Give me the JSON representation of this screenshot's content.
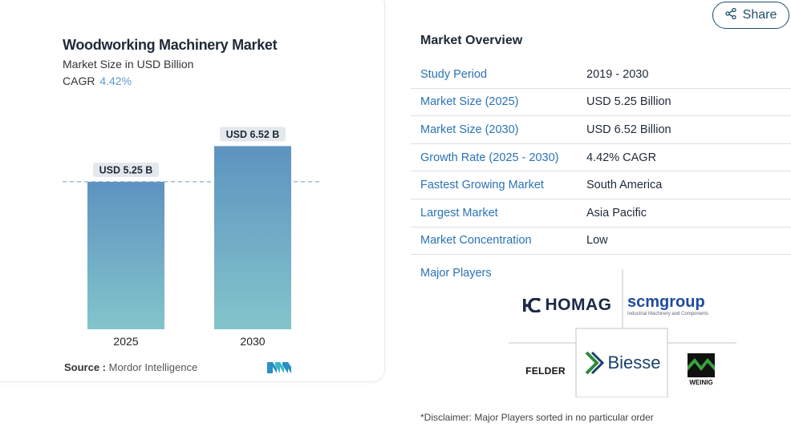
{
  "share": {
    "label": "Share",
    "icon": "share-icon"
  },
  "chart": {
    "title": "Woodworking Machinery Market",
    "subtitle": "Market Size in USD Billion",
    "cagr_label": "CAGR",
    "cagr_value": "4.42%",
    "source_label": "Source :",
    "source_value": "Mordor Intelligence"
  },
  "chart_data": {
    "type": "bar",
    "categories": [
      "2025",
      "2030"
    ],
    "values": [
      5.25,
      6.52
    ],
    "data_labels": [
      "USD 5.25 B",
      "USD 6.52 B"
    ],
    "title": "Woodworking Machinery Market",
    "subtitle": "Market Size in USD Billion",
    "ylim": [
      0,
      7.7
    ],
    "grid": false,
    "colors": {
      "bar_top": "#5d93c0",
      "bar_bottom": "#83c5cb",
      "label_bg": "#e4e8ec",
      "reference_line": "#6b9bc7"
    }
  },
  "overview": {
    "title": "Market Overview",
    "rows": [
      {
        "key": "Study Period",
        "value": "2019 - 2030"
      },
      {
        "key": "Market Size (2025)",
        "value": "USD 5.25 Billion"
      },
      {
        "key": "Market Size (2030)",
        "value": "USD 6.52 Billion"
      },
      {
        "key": "Growth Rate (2025 - 2030)",
        "value": "4.42% CAGR"
      },
      {
        "key": "Fastest Growing Market",
        "value": "South America"
      },
      {
        "key": "Largest Market",
        "value": "Asia Pacific"
      },
      {
        "key": "Market Concentration",
        "value": "Low"
      }
    ],
    "major_players_label": "Major Players",
    "players": {
      "homag": "HOMAG",
      "scm": "scmgroup",
      "scm_tagline": "Industrial Machinery and Components",
      "felder": "FELDER",
      "biesse": "Biesse",
      "weinig": "WEINIG"
    },
    "disclaimer": "*Disclaimer: Major Players sorted in no particular order"
  },
  "colors": {
    "accent": "#2a73b6",
    "dark": "#1f4e6b"
  }
}
